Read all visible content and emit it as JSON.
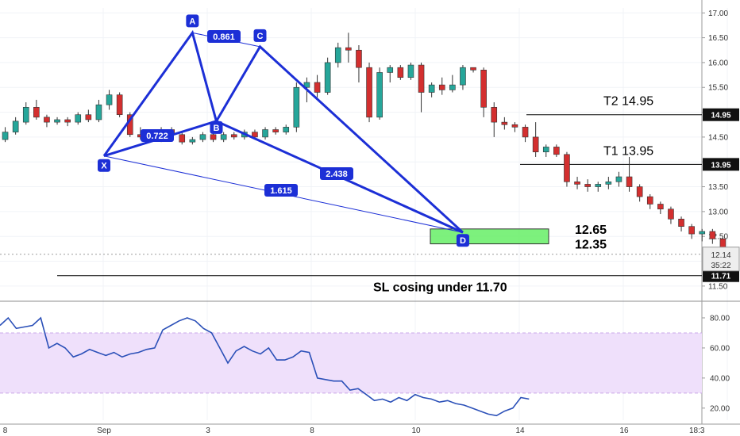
{
  "chart_data": {
    "type": "candlestick",
    "colors": {
      "up": "#26a69a",
      "down": "#d32f2f",
      "pattern": "#1c2fd6",
      "rsi_line": "#2b50b8",
      "rsi_band": "#efe0fb",
      "zone": "#66ee66",
      "axis_tag": "#111111"
    },
    "price_axis": {
      "ticks": [
        "17.00",
        "16.50",
        "16.00",
        "15.50",
        "15.00",
        "14.50",
        "14.00",
        "13.50",
        "13.00",
        "12.50",
        "12.00",
        "11.50"
      ],
      "tick_values": [
        17.0,
        16.5,
        16.0,
        15.5,
        15.0,
        14.5,
        14.0,
        13.5,
        13.0,
        12.5,
        12.0,
        11.5
      ],
      "range": [
        11.45,
        17.1
      ]
    },
    "rsi_axis": {
      "ticks": [
        "80.00",
        "60.00",
        "40.00",
        "20.00"
      ],
      "tick_values": [
        80,
        60,
        40,
        20
      ],
      "range": [
        12,
        90
      ],
      "band": [
        30,
        70
      ]
    },
    "x_axis": {
      "labels": [
        "8",
        "Sep",
        "3",
        "8",
        "10",
        "14",
        "16",
        "18:3"
      ],
      "label_index": [
        0,
        9.5,
        19.5,
        29.5,
        39.5,
        49.5,
        59.5,
        66.5
      ],
      "total_slots": 67
    },
    "candles": [
      [
        14.45,
        14.6,
        14.4,
        14.7
      ],
      [
        14.6,
        14.82,
        14.55,
        14.9
      ],
      [
        14.8,
        15.1,
        14.75,
        15.2
      ],
      [
        15.1,
        14.9,
        14.85,
        15.25
      ],
      [
        14.9,
        14.8,
        14.7,
        14.95
      ],
      [
        14.8,
        14.85,
        14.75,
        14.9
      ],
      [
        14.85,
        14.8,
        14.72,
        14.9
      ],
      [
        14.8,
        14.95,
        14.75,
        15.0
      ],
      [
        14.95,
        14.85,
        14.8,
        15.05
      ],
      [
        14.85,
        15.15,
        14.8,
        15.25
      ],
      [
        15.15,
        15.35,
        15.05,
        15.45
      ],
      [
        15.35,
        14.95,
        14.9,
        15.4
      ],
      [
        14.95,
        14.55,
        14.5,
        15.0
      ],
      [
        14.55,
        14.5,
        14.45,
        14.7
      ],
      [
        14.5,
        14.45,
        14.4,
        14.55
      ],
      [
        14.45,
        14.65,
        14.4,
        14.7
      ],
      [
        14.65,
        14.55,
        14.5,
        14.7
      ],
      [
        14.55,
        14.4,
        14.35,
        14.6
      ],
      [
        14.4,
        14.45,
        14.35,
        14.5
      ],
      [
        14.45,
        14.55,
        14.4,
        14.6
      ],
      [
        14.55,
        14.45,
        14.4,
        14.65
      ],
      [
        14.45,
        14.55,
        14.4,
        14.6
      ],
      [
        14.55,
        14.5,
        14.45,
        14.6
      ],
      [
        14.5,
        14.6,
        14.45,
        14.65
      ],
      [
        14.6,
        14.5,
        14.45,
        14.65
      ],
      [
        14.5,
        14.65,
        14.45,
        14.7
      ],
      [
        14.65,
        14.6,
        14.55,
        14.7
      ],
      [
        14.6,
        14.7,
        14.55,
        14.75
      ],
      [
        14.7,
        15.5,
        14.6,
        15.6
      ],
      [
        15.5,
        15.6,
        15.2,
        15.7
      ]
    ],
    "candles_note": "",
    "pattern": {
      "points": [
        {
          "name": "X",
          "index": 9.5,
          "price": 14.12
        },
        {
          "name": "A",
          "index": 18,
          "price": 16.6
        },
        {
          "name": "B",
          "index": 20.3,
          "price": 14.82
        },
        {
          "name": "C",
          "index": 24.5,
          "price": 16.32
        },
        {
          "name": "D",
          "index": 44,
          "price": 12.58
        }
      ],
      "ratios": [
        {
          "text": "0.861",
          "between": "A-C"
        },
        {
          "text": "0.722",
          "between": "X-B"
        },
        {
          "text": "2.438",
          "between": "B-D"
        },
        {
          "text": "1.615",
          "between": "X-D"
        }
      ]
    },
    "zone": {
      "low": 12.35,
      "high": 12.65,
      "label_high": "12.65",
      "label_low": "12.35"
    },
    "targets": [
      {
        "label": "T2  14.95",
        "value": 14.95,
        "tag": "14.95"
      },
      {
        "label": "T1  13.95",
        "value": 13.95,
        "tag": "13.95"
      }
    ],
    "stop": {
      "label": "SL cosing under 11.70",
      "value": 11.71,
      "tag": "11.71"
    },
    "current": {
      "value": 12.14,
      "tag": "12.14",
      "timer": "35:22"
    },
    "rsi_values": []
  }
}
